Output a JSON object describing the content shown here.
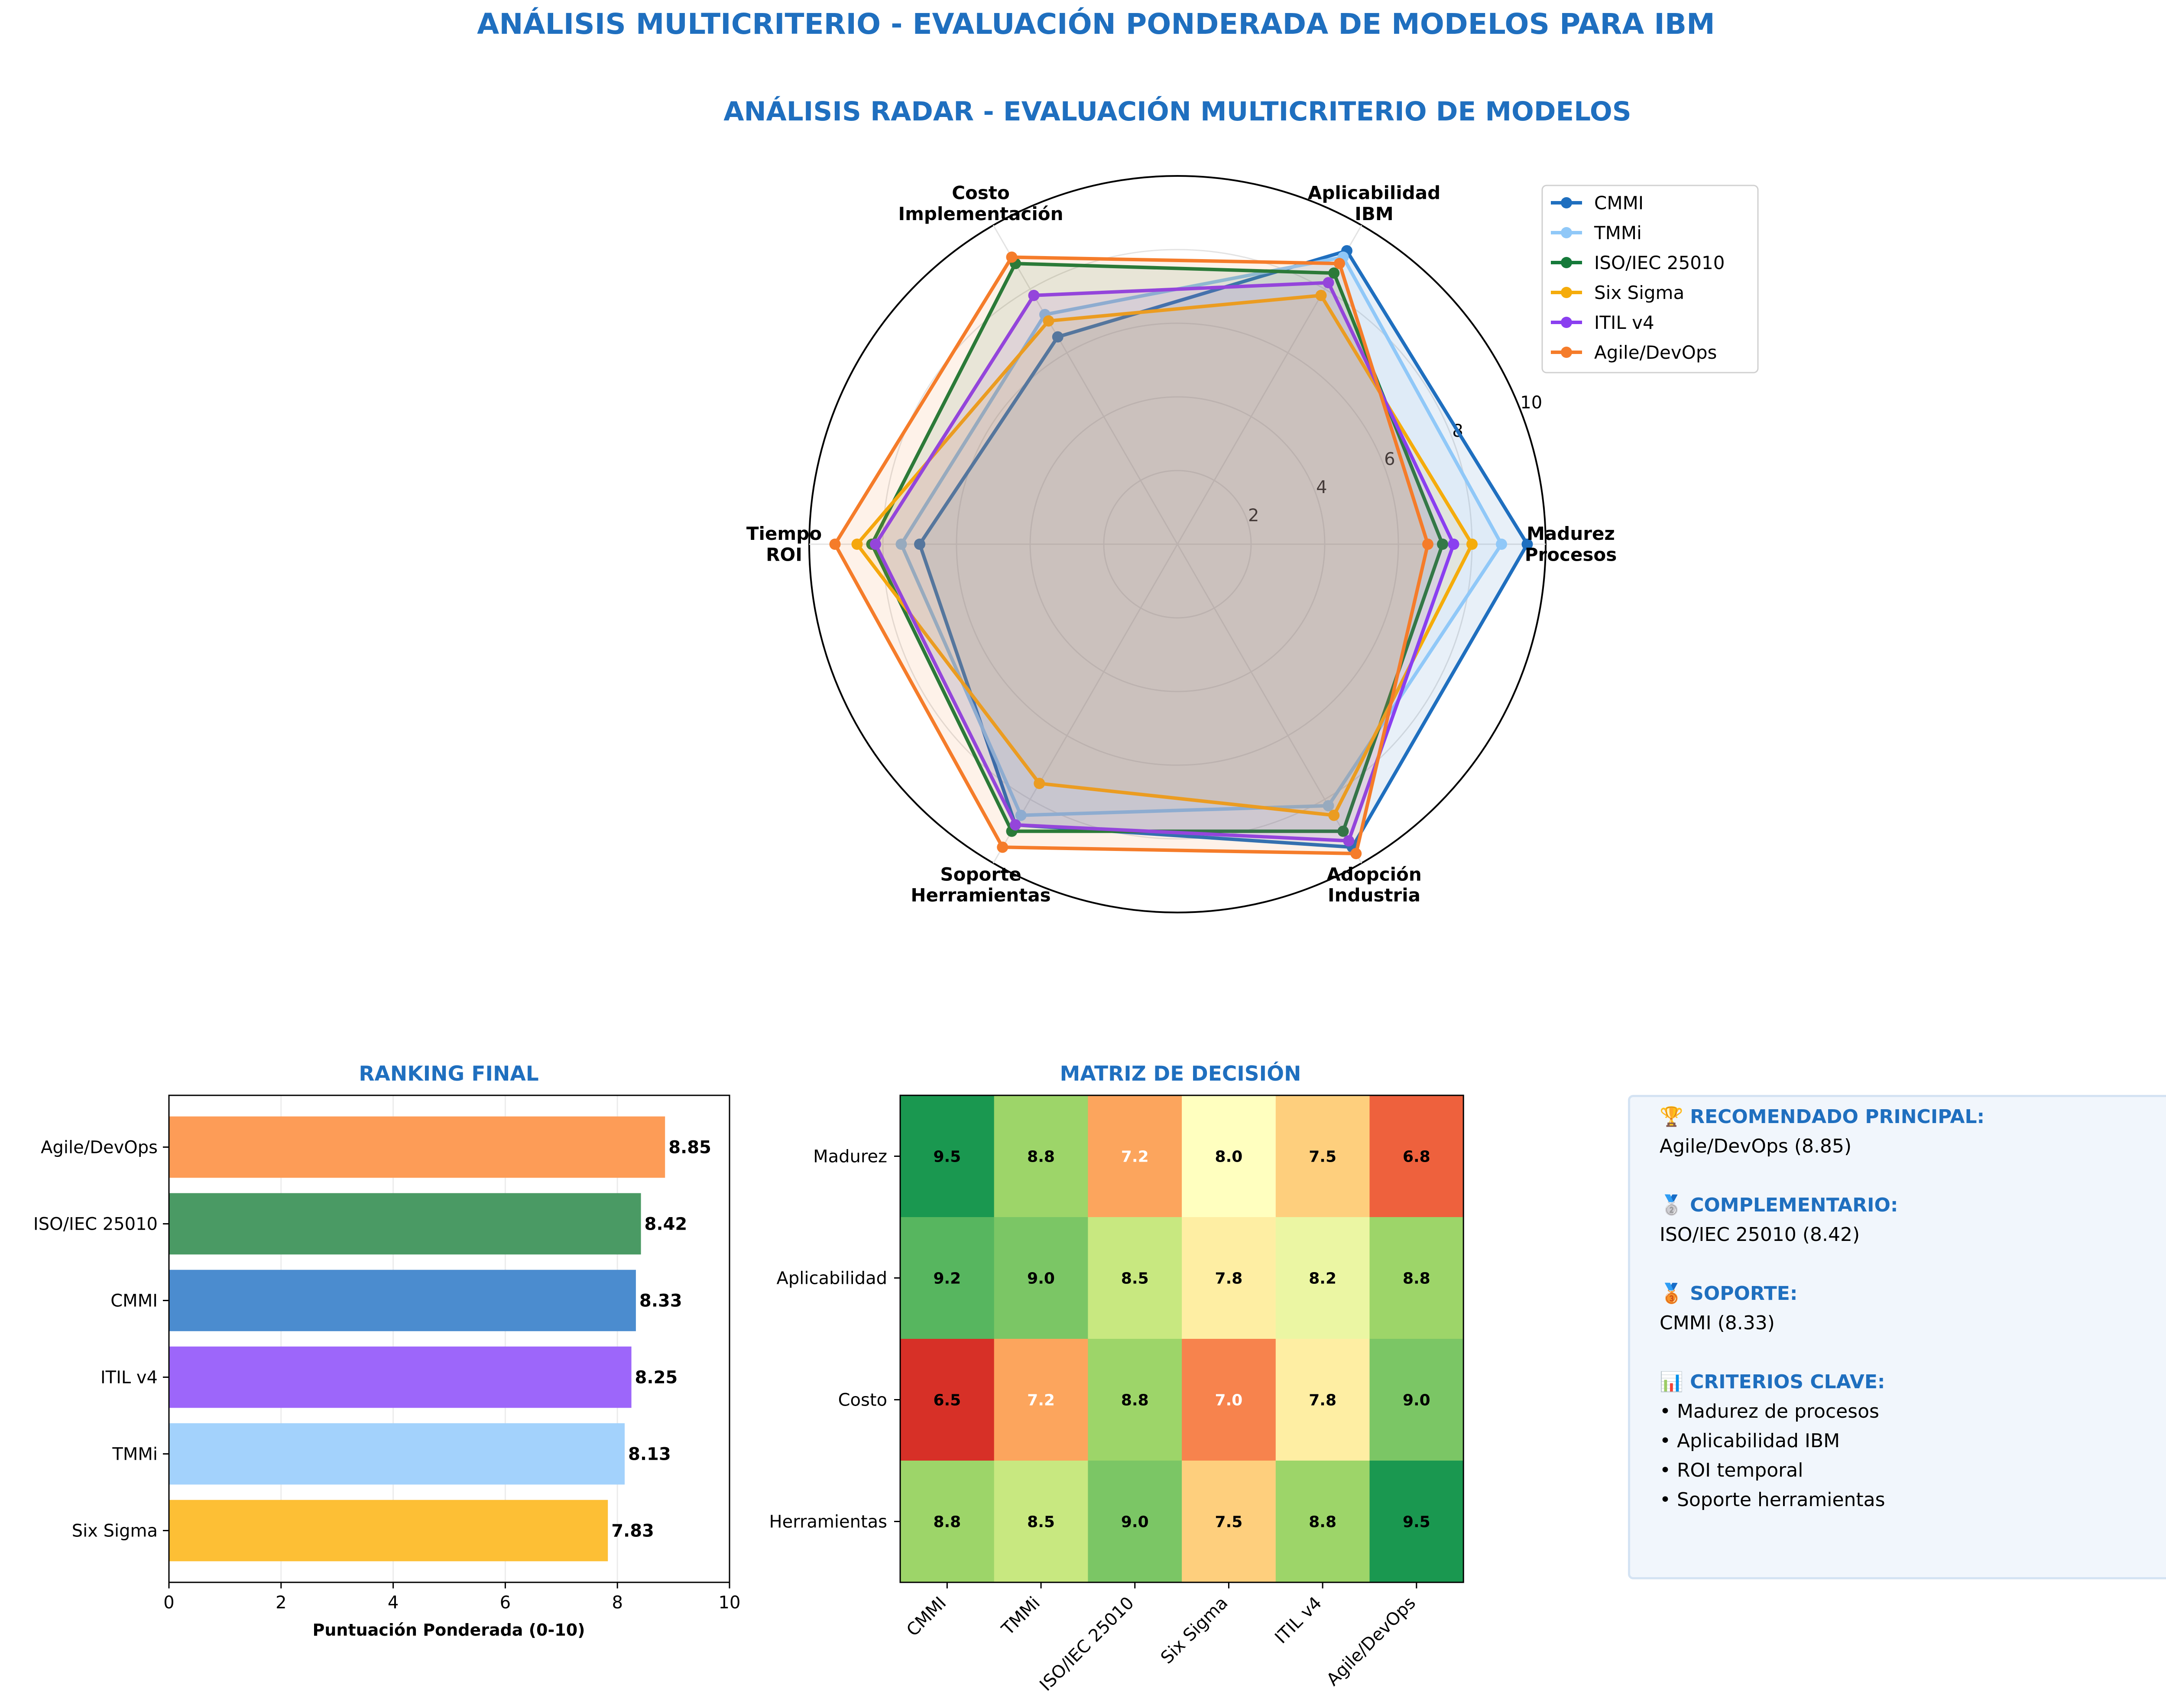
{
  "figure": {
    "suptitle": "ANÁLISIS MULTICRITERIO - EVALUACIÓN PONDERADA DE MODELOS PARA IBM",
    "title_color": "#1f6fbf"
  },
  "chart_data": [
    {
      "type": "radar",
      "title": "ANÁLISIS RADAR - EVALUACIÓN MULTICRITERIO DE MODELOS",
      "axes": [
        "Madurez\nProcesos",
        "Aplicabilidad\nIBM",
        "Costo\nImplementación",
        "Tiempo\nROI",
        "Soporte\nHerramientas",
        "Adopción\nIndustria"
      ],
      "rlim": [
        0,
        10
      ],
      "rticks": [
        2,
        4,
        6,
        8,
        10
      ],
      "grid": true,
      "legend_position": "upper-right, outside",
      "series": [
        {
          "name": "CMMI",
          "color": "#1f6fbf",
          "values": [
            9.5,
            9.2,
            6.5,
            7.0,
            8.8,
            9.5
          ]
        },
        {
          "name": "TMMi",
          "color": "#90c8f8",
          "values": [
            8.8,
            9.0,
            7.2,
            7.5,
            8.5,
            8.2
          ]
        },
        {
          "name": "ISO/IEC 25010",
          "color": "#157a3a",
          "values": [
            7.2,
            8.5,
            8.8,
            8.3,
            9.0,
            9.0
          ]
        },
        {
          "name": "Six Sigma",
          "color": "#f5ac0b",
          "values": [
            8.0,
            7.8,
            7.0,
            8.7,
            7.5,
            8.5
          ]
        },
        {
          "name": "ITIL v4",
          "color": "#8a3ff0",
          "values": [
            7.5,
            8.2,
            7.8,
            8.2,
            8.8,
            9.3
          ]
        },
        {
          "name": "Agile/DevOps",
          "color": "#f57c2a",
          "values": [
            6.8,
            8.8,
            9.0,
            9.3,
            9.5,
            9.7
          ]
        }
      ]
    },
    {
      "type": "bar",
      "orientation": "horizontal",
      "title": "RANKING FINAL",
      "xlabel": "Puntuación Ponderada (0-10)",
      "xlim": [
        0,
        10
      ],
      "xticks": [
        0,
        2,
        4,
        6,
        8,
        10
      ],
      "grid": true,
      "categories": [
        "Agile/DevOps",
        "ISO/IEC 25010",
        "CMMI",
        "ITIL v4",
        "TMMi",
        "Six Sigma"
      ],
      "values": [
        8.85,
        8.42,
        8.33,
        8.25,
        8.13,
        7.83
      ],
      "value_labels": [
        "8.85",
        "8.42",
        "8.33",
        "8.25",
        "8.13",
        "7.83"
      ],
      "colors": [
        "#fd9c57",
        "#4a9a64",
        "#4b8ccf",
        "#9d66fa",
        "#a3d2fc",
        "#fdbf35"
      ]
    },
    {
      "type": "heatmap",
      "title": "MATRIZ DE DECISIÓN",
      "columns": [
        "CMMI",
        "TMMi",
        "ISO/IEC 25010",
        "Six Sigma",
        "ITIL v4",
        "Agile/DevOps"
      ],
      "rows": [
        "Madurez",
        "Aplicabilidad",
        "Costo",
        "Herramientas"
      ],
      "values": [
        [
          9.5,
          8.8,
          7.2,
          8.0,
          7.5,
          6.8
        ],
        [
          9.2,
          9.0,
          8.5,
          7.8,
          8.2,
          8.8
        ],
        [
          6.5,
          7.2,
          8.8,
          7.0,
          7.8,
          9.0
        ],
        [
          8.8,
          8.5,
          9.0,
          7.5,
          8.8,
          9.5
        ]
      ],
      "cell_labels": [
        [
          "9.5",
          "8.8",
          "7.2",
          "8.0",
          "7.5",
          "6.8"
        ],
        [
          "9.2",
          "9.0",
          "8.5",
          "7.8",
          "8.2",
          "8.8"
        ],
        [
          "6.5",
          "7.2",
          "8.8",
          "7.0",
          "7.8",
          "9.0"
        ],
        [
          "8.8",
          "8.5",
          "9.0",
          "7.5",
          "8.8",
          "9.5"
        ]
      ],
      "colormap": "red-yellow-green",
      "color_range": [
        6.5,
        9.5
      ]
    }
  ],
  "summary": {
    "principal_header": "🏆 RECOMENDADO PRINCIPAL:",
    "principal_value": "Agile/DevOps (8.85)",
    "complementario_header": "🥈 COMPLEMENTARIO:",
    "complementario_value": "ISO/IEC 25010 (8.42)",
    "soporte_header": "🥉 SOPORTE:",
    "soporte_value": "CMMI (8.33)",
    "criterios_header": "📊 CRITERIOS CLAVE:",
    "criterios": [
      "• Madurez de procesos",
      "• Aplicabilidad IBM",
      "• ROI temporal",
      "• Soporte herramientas"
    ]
  }
}
